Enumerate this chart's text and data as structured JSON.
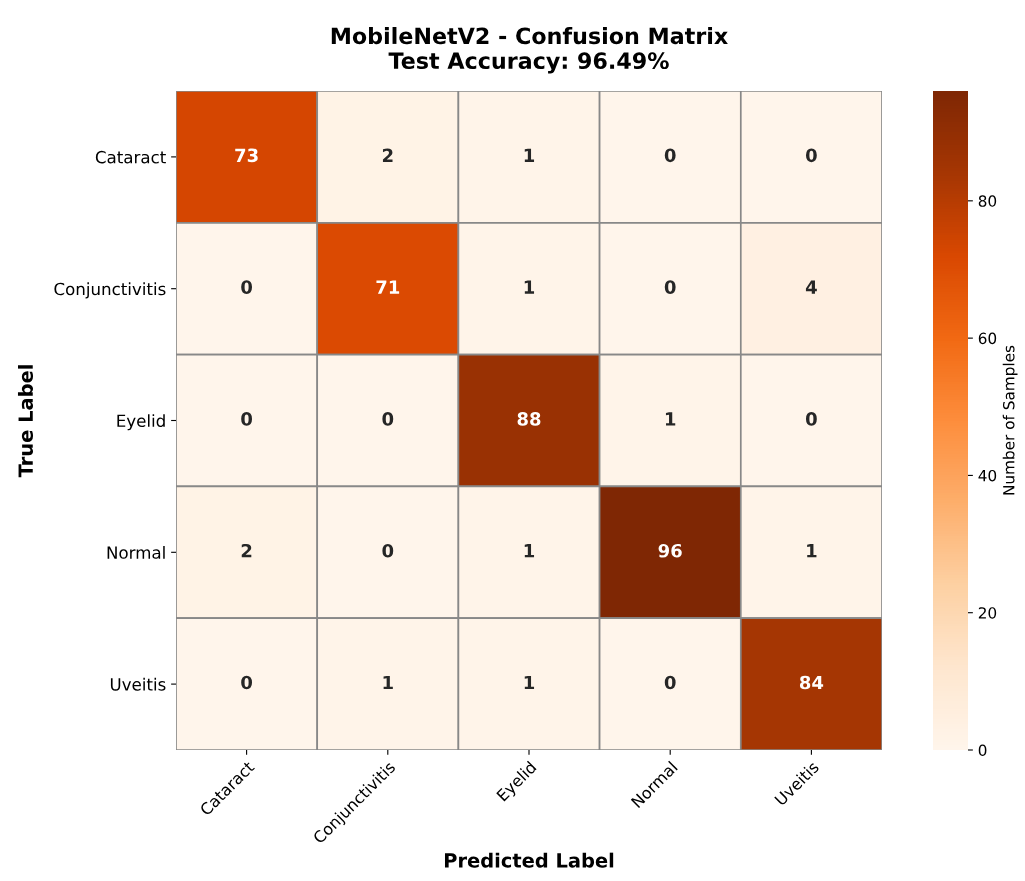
{
  "chart_data": {
    "type": "heatmap",
    "title": "MobileNetV2 - Confusion Matrix\nTest Accuracy: 96.49%",
    "xlabel": "Predicted Label",
    "ylabel": "True Label",
    "clabel": "Number of Samples",
    "categories": [
      "Cataract",
      "Conjunctivitis",
      "Eyelid",
      "Normal",
      "Uveitis"
    ],
    "y_categories": [
      "Cataract",
      "Conjunctivitis",
      "Eyelid",
      "Normal",
      "Uveitis"
    ],
    "cells": [
      [
        73,
        2,
        1,
        0,
        0
      ],
      [
        0,
        71,
        1,
        0,
        4
      ],
      [
        0,
        0,
        88,
        1,
        0
      ],
      [
        2,
        0,
        1,
        96,
        1
      ],
      [
        0,
        1,
        1,
        0,
        84
      ]
    ],
    "clim": [
      0,
      96
    ],
    "cticks": [
      0,
      20,
      40,
      60,
      80
    ],
    "data_labels": true
  }
}
